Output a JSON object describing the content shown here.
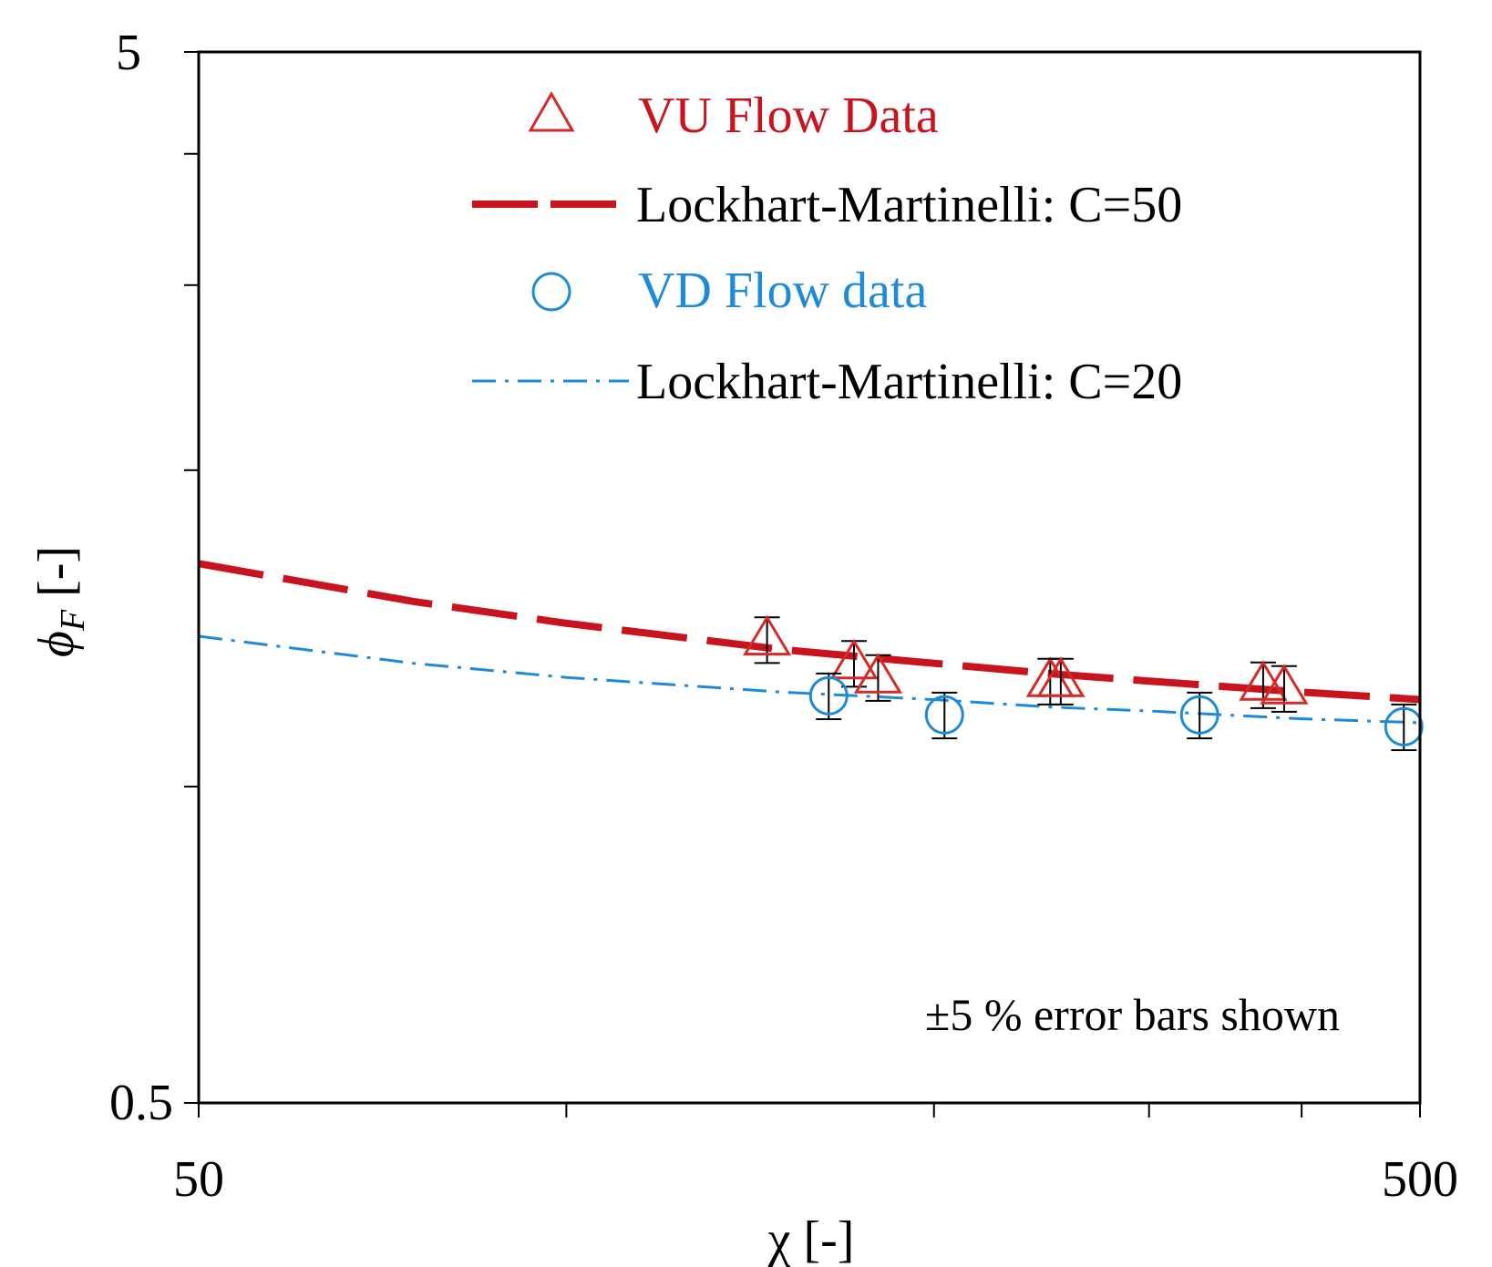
{
  "chart_data": {
    "type": "scatter",
    "xscale": "log",
    "yscale": "log",
    "xlim": [
      50,
      500
    ],
    "ylim": [
      0.5,
      5
    ],
    "xlabel": "χ [-]",
    "ylabel": {
      "symbol": "ϕ",
      "subscript": "F",
      "unit": " [-]"
    },
    "x_tick_labels": [
      "50",
      "500"
    ],
    "x_minor_ticks": [
      100,
      200,
      300,
      400
    ],
    "y_tick_labels": [
      "0.5",
      "5"
    ],
    "y_minor_ticks": [
      1,
      2,
      3,
      4
    ],
    "annotation": "±5 % error bars shown",
    "error_bar_percent": 5,
    "series": [
      {
        "name": "VU Flow Data",
        "kind": "points",
        "marker": "triangle",
        "color": "#d42a2a",
        "points": [
          {
            "x": 146,
            "y": 1.38
          },
          {
            "x": 172,
            "y": 1.31
          },
          {
            "x": 180,
            "y": 1.27
          },
          {
            "x": 249,
            "y": 1.26
          },
          {
            "x": 254,
            "y": 1.26
          },
          {
            "x": 372,
            "y": 1.25
          },
          {
            "x": 387,
            "y": 1.24
          }
        ]
      },
      {
        "name": "Lockhart-Martinelli: C=50",
        "kind": "line",
        "dash": "long-dash",
        "color": "#c8141e",
        "x": [
          50,
          75,
          100,
          150,
          200,
          250,
          300,
          400,
          500
        ],
        "y": [
          1.63,
          1.5,
          1.43,
          1.35,
          1.31,
          1.28,
          1.26,
          1.23,
          1.21
        ]
      },
      {
        "name": "VD Flow data",
        "kind": "points",
        "marker": "circle",
        "color": "#1f8bd6",
        "points": [
          {
            "x": 164,
            "y": 1.22
          },
          {
            "x": 204,
            "y": 1.17
          },
          {
            "x": 330,
            "y": 1.17
          },
          {
            "x": 485,
            "y": 1.14
          }
        ]
      },
      {
        "name": "Lockhart-Martinelli: C=20",
        "kind": "line",
        "dash": "dash-dot",
        "color": "#1f8bd6",
        "x": [
          50,
          75,
          100,
          150,
          200,
          250,
          300,
          400,
          500
        ],
        "y": [
          1.39,
          1.31,
          1.27,
          1.23,
          1.21,
          1.19,
          1.18,
          1.16,
          1.15
        ]
      }
    ]
  }
}
